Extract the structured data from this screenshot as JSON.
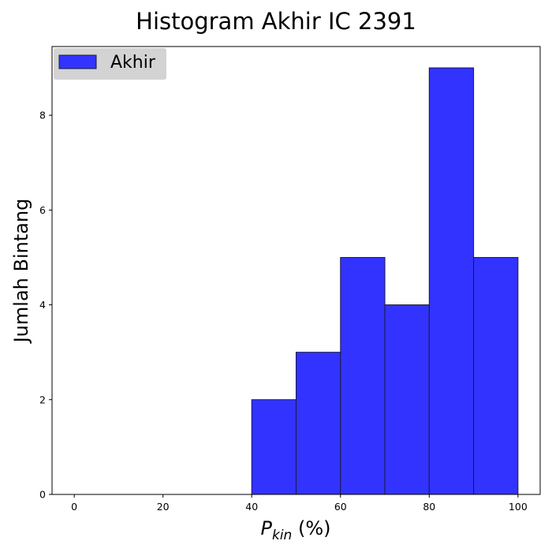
{
  "chart_data": {
    "type": "bar",
    "title": "Histogram Akhir IC 2391",
    "xlabel_base": "P",
    "xlabel_subscript": "kin",
    "xlabel_suffix": " (%)",
    "ylabel": "Jumlah Bintang",
    "bins": [
      [
        40,
        50
      ],
      [
        50,
        60
      ],
      [
        60,
        70
      ],
      [
        70,
        80
      ],
      [
        80,
        90
      ],
      [
        90,
        100
      ]
    ],
    "values": [
      2,
      3,
      5,
      4,
      9,
      5
    ],
    "xlim": [
      -5,
      105
    ],
    "ylim": [
      0,
      9.45
    ],
    "xticks": [
      "0",
      "20",
      "40",
      "60",
      "80",
      "100"
    ],
    "yticks": [
      "0",
      "2",
      "4",
      "6",
      "8"
    ],
    "series": [
      {
        "name": "Akhir",
        "color": "#3333ff",
        "edgecolor": "#1a1a40"
      }
    ],
    "legend_position": "top-left",
    "grid": false
  }
}
